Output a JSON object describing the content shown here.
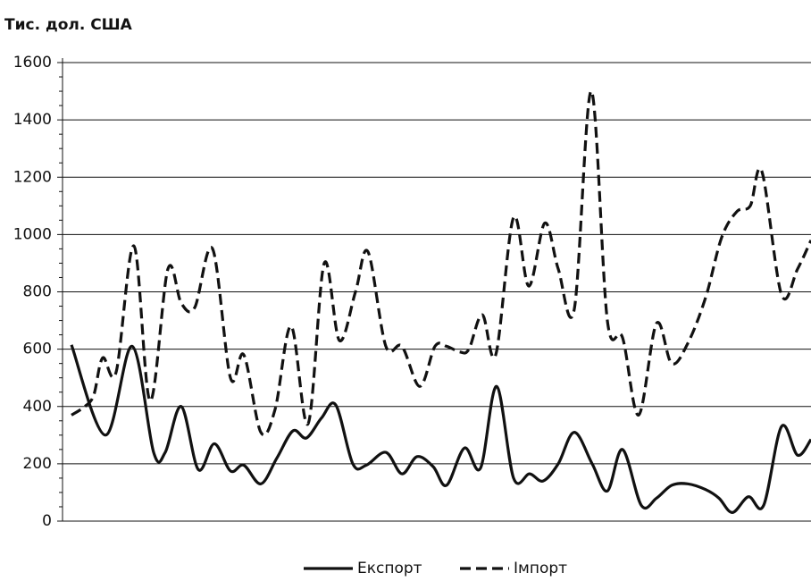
{
  "chart_data": {
    "type": "line",
    "title": "Тис. дол. США",
    "xlim": [
      0,
      838
    ],
    "ylim": [
      0,
      1600
    ],
    "yticks": [
      0,
      200,
      400,
      600,
      800,
      1000,
      1200,
      1400,
      1600
    ],
    "yticks_minor": [
      50,
      100,
      150,
      250,
      300,
      350,
      450,
      500,
      550,
      650,
      700,
      750,
      850,
      900,
      950,
      1050,
      1100,
      1150,
      1250,
      1300,
      1350,
      1450,
      1500,
      1550
    ],
    "grid": true,
    "legend": "bottom",
    "series": [
      {
        "name": "Експорт",
        "color": "#111111",
        "dash": "solid",
        "x": [
          10,
          48,
          78,
          102,
          115,
          133,
          152,
          170,
          188,
          203,
          222,
          240,
          258,
          273,
          290,
          306,
          325,
          340,
          362,
          380,
          397,
          415,
          430,
          450,
          468,
          486,
          505,
          523,
          538,
          555,
          573,
          593,
          610,
          627,
          648,
          665,
          682,
          700,
          720,
          735,
          750,
          768,
          785,
          805,
          823,
          838
        ],
        "values": [
          615,
          300,
          610,
          240,
          240,
          400,
          180,
          270,
          175,
          195,
          130,
          220,
          315,
          290,
          360,
          405,
          200,
          195,
          240,
          165,
          225,
          190,
          125,
          255,
          185,
          470,
          150,
          165,
          140,
          200,
          310,
          200,
          105,
          250,
          55,
          80,
          125,
          130,
          110,
          80,
          30,
          85,
          55,
          330,
          230,
          285
        ]
      },
      {
        "name": "Імпорт",
        "color": "#111111",
        "dash": "dashed",
        "x": [
          10,
          25,
          35,
          45,
          60,
          80,
          98,
          118,
          133,
          148,
          168,
          188,
          203,
          222,
          238,
          256,
          275,
          293,
          310,
          328,
          342,
          362,
          380,
          400,
          417,
          430,
          445,
          455,
          470,
          485,
          505,
          522,
          540,
          555,
          573,
          592,
          610,
          627,
          645,
          665,
          682,
          700,
          720,
          738,
          755,
          770,
          783,
          805,
          823,
          838
        ],
        "values": [
          370,
          400,
          440,
          570,
          520,
          960,
          420,
          880,
          760,
          745,
          950,
          500,
          580,
          310,
          390,
          680,
          340,
          900,
          630,
          800,
          940,
          610,
          610,
          470,
          610,
          610,
          590,
          600,
          720,
          580,
          1060,
          820,
          1040,
          880,
          740,
          1500,
          700,
          640,
          370,
          690,
          550,
          620,
          780,
          990,
          1080,
          1100,
          1220,
          790,
          880,
          980
        ]
      }
    ]
  }
}
